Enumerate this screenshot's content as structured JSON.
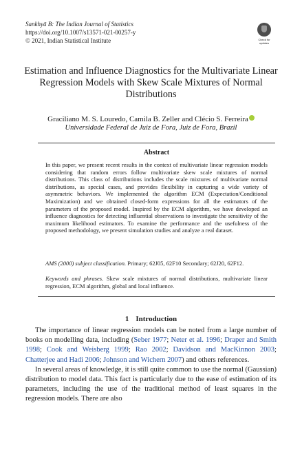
{
  "header": {
    "journal": "Sankhyā B: The Indian Journal of Statistics",
    "doi": "https://doi.org/10.1007/s13571-021-00257-y",
    "copyright": "© 2021, Indian Statistical Institute",
    "badge_text": "Check for updates"
  },
  "title": "Estimation and Influence Diagnostics for the Multivariate Linear Regression Models with Skew Scale Mixtures of Normal Distributions",
  "authors": "Graciliano M. S. Louredo, Camila B. Zeller and Clécio S. Ferreira",
  "affiliation": "Universidade Federal de Juiz de Fora, Juiz de Fora, Brazil",
  "abstract": {
    "heading": "Abstract",
    "text": "In this paper, we present recent results in the context of multivariate linear regression models considering that random errors follow multivariate skew scale mixtures of normal distributions. This class of distributions includes the scale mixtures of multivariate normal distributions, as special cases, and provides flexibility in capturing a wide variety of asymmetric behaviors. We implemented the algorithm ECM (Expectation/Conditional Maximization) and we obtained closed-form expressions for all the estimators of the parameters of the proposed model. Inspired by the ECM algorithm, we have developed an influence diagnostics for detecting influential observations to investigate the sensitivity of the maximum likelihood estimators. To examine the performance and the usefulness of the proposed methodology, we present simulation studies and analyze a real dataset."
  },
  "ams": {
    "label": "AMS (2000) subject classification.",
    "text": " Primary; 62J05, 62F10 Secondary; 62J20, 62F12."
  },
  "keywords": {
    "label": "Keywords and phrases.",
    "text": " Skew scale mixtures of normal distributions, multivariate linear regression, ECM algorithm, global and local influence."
  },
  "section": {
    "number": "1",
    "title": "Introduction"
  },
  "paragraphs": {
    "p1": [
      "The importance of linear regression models can be noted from a large number of books on modelling data, including (",
      {
        "cite": "Seber 1977"
      },
      "; ",
      {
        "cite": "Neter et al. 1996"
      },
      "; ",
      {
        "cite": "Draper and Smith 1998"
      },
      "; ",
      {
        "cite": "Cook and Weisberg 1999"
      },
      "; ",
      {
        "cite": "Rao 2002"
      },
      "; ",
      {
        "cite": "Davidson and MacKinnon 2003"
      },
      "; ",
      {
        "cite": "Chatterjee and Hadi 2006"
      },
      "; ",
      {
        "cite": "Johnson and Wichern 2007"
      },
      ") and others references."
    ],
    "p2": [
      "In several areas of knowledge, it is still quite common to use the normal (Gaussian) distribution to model data. This fact is particularly due to the ease of estimation of its parameters, including the use of the traditional method of least squares in the regression models. There are also"
    ]
  }
}
